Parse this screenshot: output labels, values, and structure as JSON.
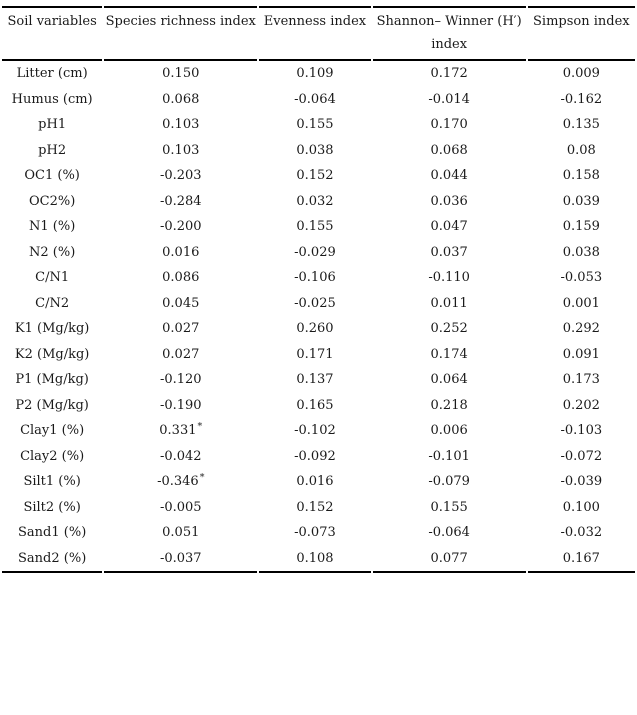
{
  "table": {
    "headers": [
      {
        "lines": [
          "Soil variables"
        ]
      },
      {
        "lines": [
          "Species richness index"
        ]
      },
      {
        "lines": [
          "Evenness index"
        ]
      },
      {
        "lines": [
          "Shannon– Winner (H′)",
          "index"
        ]
      },
      {
        "lines": [
          "Simpson index"
        ]
      }
    ],
    "star_symbol": "*",
    "rows": [
      {
        "label": "Litter (cm)",
        "values": [
          "0.150",
          "0.109",
          "0.172",
          "0.009"
        ]
      },
      {
        "label": "Humus (cm)",
        "values": [
          "0.068",
          "-0.064",
          "-0.014",
          "-0.162"
        ]
      },
      {
        "label": "pH1",
        "values": [
          "0.103",
          "0.155",
          "0.170",
          "0.135"
        ]
      },
      {
        "label": "pH2",
        "values": [
          "0.103",
          "0.038",
          "0.068",
          "0.08"
        ]
      },
      {
        "label": "OC1 (%)",
        "values": [
          "-0.203",
          "0.152",
          "0.044",
          "0.158"
        ]
      },
      {
        "label": "OC2%)",
        "values": [
          "-0.284",
          "0.032",
          "0.036",
          "0.039"
        ]
      },
      {
        "label": "N1 (%)",
        "values": [
          "-0.200",
          "0.155",
          "0.047",
          "0.159"
        ]
      },
      {
        "label": "N2 (%)",
        "values": [
          "0.016",
          "-0.029",
          "0.037",
          "0.038"
        ]
      },
      {
        "label": "C/N1",
        "values": [
          "0.086",
          "-0.106",
          "-0.110",
          "-0.053"
        ]
      },
      {
        "label": "C/N2",
        "values": [
          "0.045",
          "-0.025",
          "0.011",
          "0.001"
        ]
      },
      {
        "label": "K1 (Mg/kg)",
        "values": [
          "0.027",
          "0.260",
          "0.252",
          "0.292"
        ]
      },
      {
        "label": "K2 (Mg/kg)",
        "values": [
          "0.027",
          "0.171",
          "0.174",
          "0.091"
        ]
      },
      {
        "label": "P1 (Mg/kg)",
        "values": [
          "-0.120",
          "0.137",
          "0.064",
          "0.173"
        ]
      },
      {
        "label": "P2 (Mg/kg)",
        "values": [
          "-0.190",
          "0.165",
          "0.218",
          "0.202"
        ]
      },
      {
        "label": "Clay1 (%)",
        "values": [
          "0.331",
          "-0.102",
          "0.006",
          "-0.103"
        ],
        "star": [
          0
        ]
      },
      {
        "label": "Clay2 (%)",
        "values": [
          "-0.042",
          "-0.092",
          "-0.101",
          "-0.072"
        ]
      },
      {
        "label": "Silt1 (%)",
        "values": [
          "-0.346",
          "0.016",
          "-0.079",
          "-0.039"
        ],
        "star": [
          0
        ]
      },
      {
        "label": "Silt2 (%)",
        "values": [
          "-0.005",
          "0.152",
          "0.155",
          "0.100"
        ]
      },
      {
        "label": "Sand1 (%)",
        "values": [
          "0.051",
          "-0.073",
          "-0.064",
          "-0.032"
        ]
      },
      {
        "label": "Sand2 (%)",
        "values": [
          "-0.037",
          "0.108",
          "0.077",
          "0.167"
        ]
      }
    ]
  },
  "colors": {
    "text": "#1a1a1a",
    "rule": "#000000",
    "background": "#ffffff"
  }
}
